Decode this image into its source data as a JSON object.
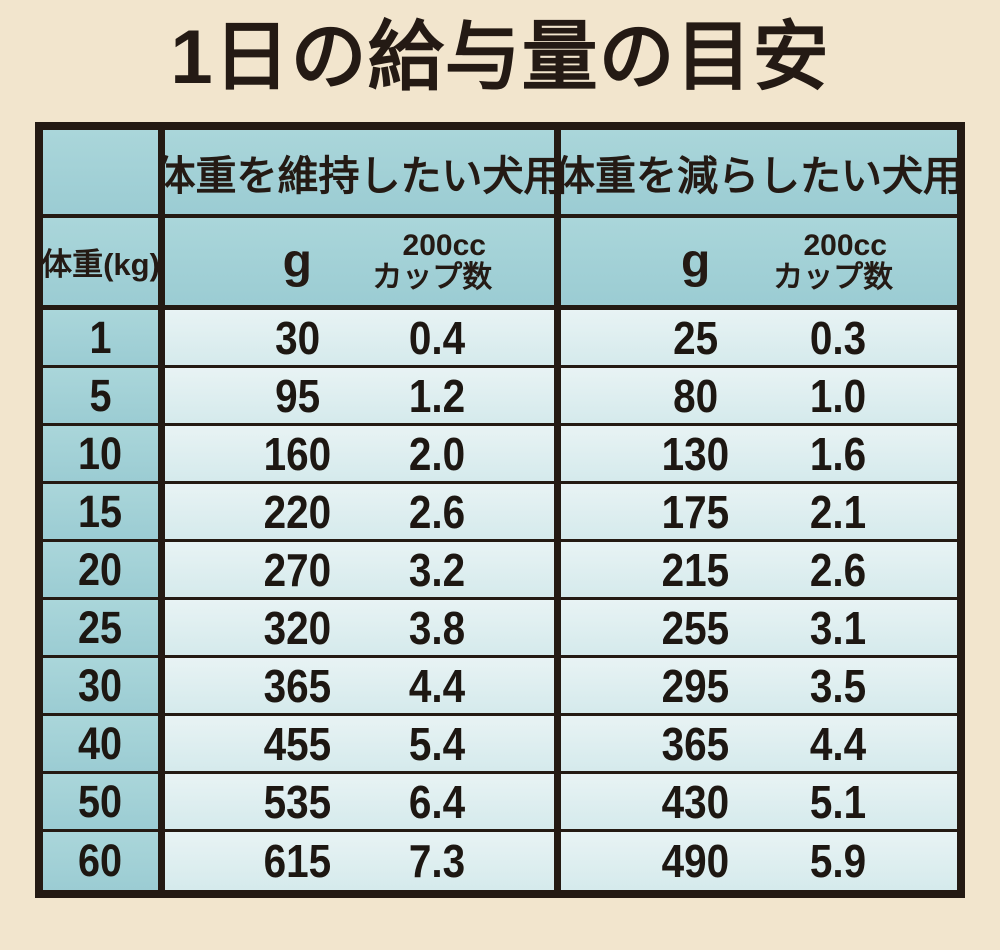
{
  "title": "1日の給与量の目安",
  "colors": {
    "background": "#f2e5cd",
    "header_teal": "#a4d2d8",
    "cell_light": "#dfeef0",
    "border": "#241a13",
    "text": "#241a14"
  },
  "table": {
    "weight_header": "体重(kg)",
    "section_headers": [
      "体重を維持したい犬用",
      "体重を減らしたい犬用"
    ],
    "unit_g": "g",
    "unit_cup_line1": "200cc",
    "unit_cup_line2": "カップ数",
    "rows": [
      {
        "kg": "1",
        "maintain_g": "30",
        "maintain_cup": "0.4",
        "reduce_g": "25",
        "reduce_cup": "0.3"
      },
      {
        "kg": "5",
        "maintain_g": "95",
        "maintain_cup": "1.2",
        "reduce_g": "80",
        "reduce_cup": "1.0"
      },
      {
        "kg": "10",
        "maintain_g": "160",
        "maintain_cup": "2.0",
        "reduce_g": "130",
        "reduce_cup": "1.6"
      },
      {
        "kg": "15",
        "maintain_g": "220",
        "maintain_cup": "2.6",
        "reduce_g": "175",
        "reduce_cup": "2.1"
      },
      {
        "kg": "20",
        "maintain_g": "270",
        "maintain_cup": "3.2",
        "reduce_g": "215",
        "reduce_cup": "2.6"
      },
      {
        "kg": "25",
        "maintain_g": "320",
        "maintain_cup": "3.8",
        "reduce_g": "255",
        "reduce_cup": "3.1"
      },
      {
        "kg": "30",
        "maintain_g": "365",
        "maintain_cup": "4.4",
        "reduce_g": "295",
        "reduce_cup": "3.5"
      },
      {
        "kg": "40",
        "maintain_g": "455",
        "maintain_cup": "5.4",
        "reduce_g": "365",
        "reduce_cup": "4.4"
      },
      {
        "kg": "50",
        "maintain_g": "535",
        "maintain_cup": "6.4",
        "reduce_g": "430",
        "reduce_cup": "5.1"
      },
      {
        "kg": "60",
        "maintain_g": "615",
        "maintain_cup": "7.3",
        "reduce_g": "490",
        "reduce_cup": "5.9"
      }
    ]
  },
  "chart_data": {
    "type": "table",
    "title": "1日の給与量の目安",
    "columns": [
      "体重(kg)",
      "体重を維持したい犬用 g",
      "体重を維持したい犬用 200ccカップ数",
      "体重を減らしたい犬用 g",
      "体重を減らしたい犬用 200ccカップ数"
    ],
    "rows": [
      [
        1,
        30,
        0.4,
        25,
        0.3
      ],
      [
        5,
        95,
        1.2,
        80,
        1.0
      ],
      [
        10,
        160,
        2.0,
        130,
        1.6
      ],
      [
        15,
        220,
        2.6,
        175,
        2.1
      ],
      [
        20,
        270,
        3.2,
        215,
        2.6
      ],
      [
        25,
        320,
        3.8,
        255,
        3.1
      ],
      [
        30,
        365,
        4.4,
        295,
        3.5
      ],
      [
        40,
        455,
        5.4,
        365,
        4.4
      ],
      [
        50,
        535,
        6.4,
        430,
        5.1
      ],
      [
        60,
        615,
        7.3,
        490,
        5.9
      ]
    ]
  }
}
